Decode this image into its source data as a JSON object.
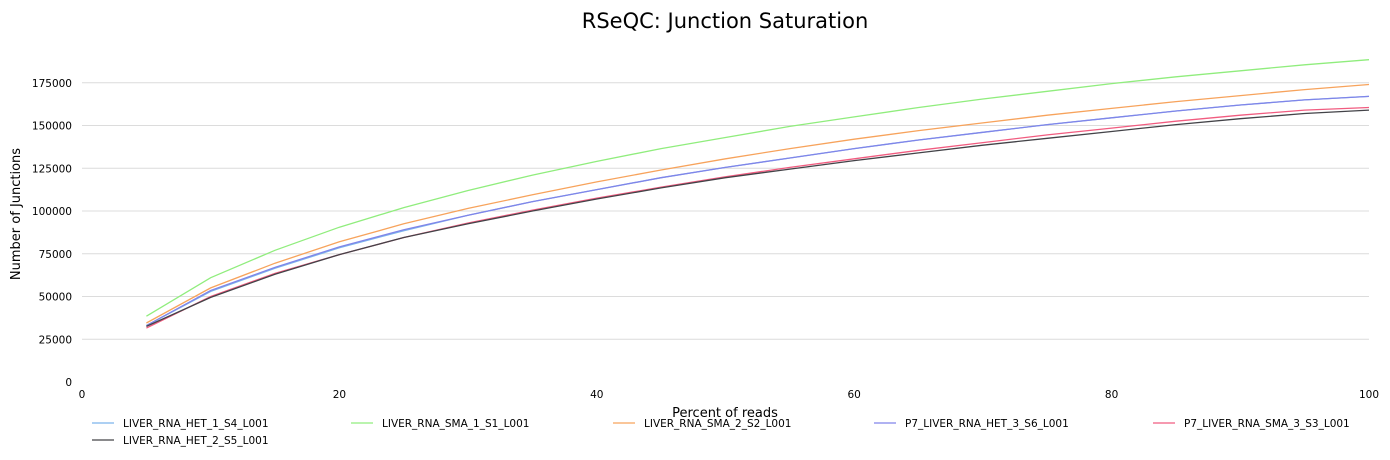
{
  "chart_data": {
    "type": "line",
    "title": "RSeQC: Junction Saturation",
    "xlabel": "Percent of reads",
    "ylabel": "Number of Junctions",
    "xlim": [
      0,
      100
    ],
    "ylim": [
      0,
      200000
    ],
    "xticks": [
      0,
      20,
      40,
      60,
      80,
      100
    ],
    "yticks": [
      0,
      25000,
      50000,
      75000,
      100000,
      125000,
      150000,
      175000
    ],
    "grid": "horizontal",
    "legend_position": "bottom",
    "x": [
      5,
      10,
      15,
      20,
      25,
      30,
      35,
      40,
      45,
      50,
      55,
      60,
      65,
      70,
      75,
      80,
      85,
      90,
      95,
      100
    ],
    "series": [
      {
        "name": "LIVER_RNA_HET_1_S4_L001",
        "color": "#7cb5ec",
        "values": [
          33000,
          53000,
          66500,
          78500,
          88500,
          97500,
          105500,
          112500,
          119500,
          125500,
          131000,
          136500,
          141500,
          146000,
          150500,
          154500,
          158500,
          162000,
          165000,
          167000
        ]
      },
      {
        "name": "LIVER_RNA_SMA_1_S1_L001",
        "color": "#90ed7d",
        "values": [
          38500,
          61000,
          77000,
          90500,
          102000,
          112000,
          121000,
          129000,
          136500,
          143000,
          149500,
          155000,
          160500,
          165500,
          170000,
          174500,
          178500,
          182000,
          185500,
          188500
        ]
      },
      {
        "name": "LIVER_RNA_SMA_2_S2_L001",
        "color": "#f7a35c",
        "values": [
          34500,
          55000,
          69500,
          82000,
          92500,
          101500,
          109500,
          117000,
          124000,
          130500,
          136500,
          142000,
          147000,
          151500,
          156000,
          160000,
          164000,
          167500,
          171000,
          174000
        ]
      },
      {
        "name": "P7_LIVER_RNA_HET_3_S6_L001",
        "color": "#8085e9",
        "values": [
          33000,
          53500,
          67000,
          79000,
          89000,
          97500,
          105500,
          112500,
          119500,
          125500,
          131000,
          136500,
          141500,
          146000,
          150500,
          154500,
          158500,
          162000,
          165000,
          167000
        ]
      },
      {
        "name": "P7_LIVER_RNA_SMA_3_S3_L001",
        "color": "#f15c80",
        "values": [
          31500,
          50000,
          63500,
          74500,
          84500,
          93000,
          100500,
          107500,
          114000,
          120000,
          125500,
          130500,
          135500,
          140000,
          144500,
          148500,
          152500,
          156000,
          159000,
          160500
        ]
      },
      {
        "name": "LIVER_RNA_HET_2_S5_L001",
        "color": "#434348",
        "values": [
          32500,
          49500,
          63000,
          74500,
          84500,
          92500,
          100000,
          107000,
          113500,
          119500,
          124500,
          129500,
          134000,
          138500,
          142500,
          146500,
          150500,
          154000,
          157000,
          159000
        ]
      }
    ]
  }
}
